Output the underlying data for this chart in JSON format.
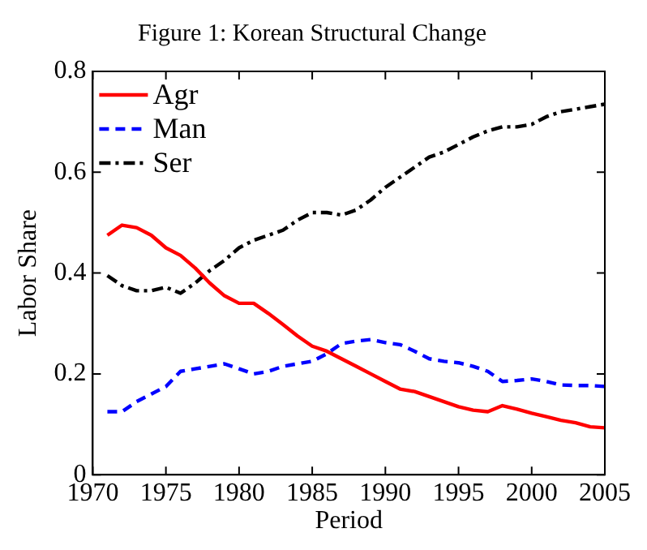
{
  "chart_data": {
    "type": "line",
    "title": "Figure 1: Korean Structural Change",
    "xlabel": "Period",
    "ylabel": "Labor Share",
    "x": [
      1971,
      1972,
      1973,
      1974,
      1975,
      1976,
      1977,
      1978,
      1979,
      1980,
      1981,
      1982,
      1983,
      1984,
      1985,
      1986,
      1987,
      1988,
      1989,
      1990,
      1991,
      1992,
      1993,
      1994,
      1995,
      1996,
      1997,
      1998,
      1999,
      2000,
      2001,
      2002,
      2003,
      2004,
      2005
    ],
    "series": [
      {
        "name": "Agr",
        "color": "#ff0000",
        "line_style": "solid",
        "values": [
          0.475,
          0.495,
          0.49,
          0.475,
          0.45,
          0.435,
          0.41,
          0.38,
          0.355,
          0.34,
          0.34,
          0.32,
          0.298,
          0.275,
          0.255,
          0.245,
          0.23,
          0.215,
          0.2,
          0.185,
          0.17,
          0.165,
          0.155,
          0.145,
          0.135,
          0.128,
          0.125,
          0.137,
          0.13,
          0.122,
          0.115,
          0.108,
          0.103,
          0.095,
          0.093
        ]
      },
      {
        "name": "Man",
        "color": "#0000ff",
        "line_style": "dashed",
        "values": [
          0.125,
          0.125,
          0.145,
          0.16,
          0.175,
          0.205,
          0.21,
          0.215,
          0.22,
          0.21,
          0.2,
          0.205,
          0.215,
          0.22,
          0.225,
          0.24,
          0.26,
          0.265,
          0.268,
          0.262,
          0.258,
          0.245,
          0.23,
          0.225,
          0.222,
          0.215,
          0.205,
          0.185,
          0.187,
          0.19,
          0.185,
          0.178,
          0.177,
          0.177,
          0.175
        ]
      },
      {
        "name": "Ser",
        "color": "#000000",
        "line_style": "dashdot",
        "values": [
          0.395,
          0.375,
          0.365,
          0.365,
          0.372,
          0.36,
          0.38,
          0.405,
          0.425,
          0.45,
          0.465,
          0.475,
          0.485,
          0.505,
          0.52,
          0.52,
          0.515,
          0.525,
          0.545,
          0.57,
          0.59,
          0.61,
          0.63,
          0.64,
          0.655,
          0.67,
          0.682,
          0.69,
          0.69,
          0.695,
          0.71,
          0.72,
          0.725,
          0.73,
          0.735
        ]
      }
    ],
    "xlim": [
      1970,
      2005
    ],
    "xticks": [
      1970,
      1975,
      1980,
      1985,
      1990,
      1995,
      2000,
      2005
    ],
    "ylim": [
      0,
      0.8
    ],
    "yticks": [
      0,
      0.2,
      0.4,
      0.6,
      0.8
    ],
    "grid": false,
    "legend": "top left",
    "marker": "none"
  }
}
